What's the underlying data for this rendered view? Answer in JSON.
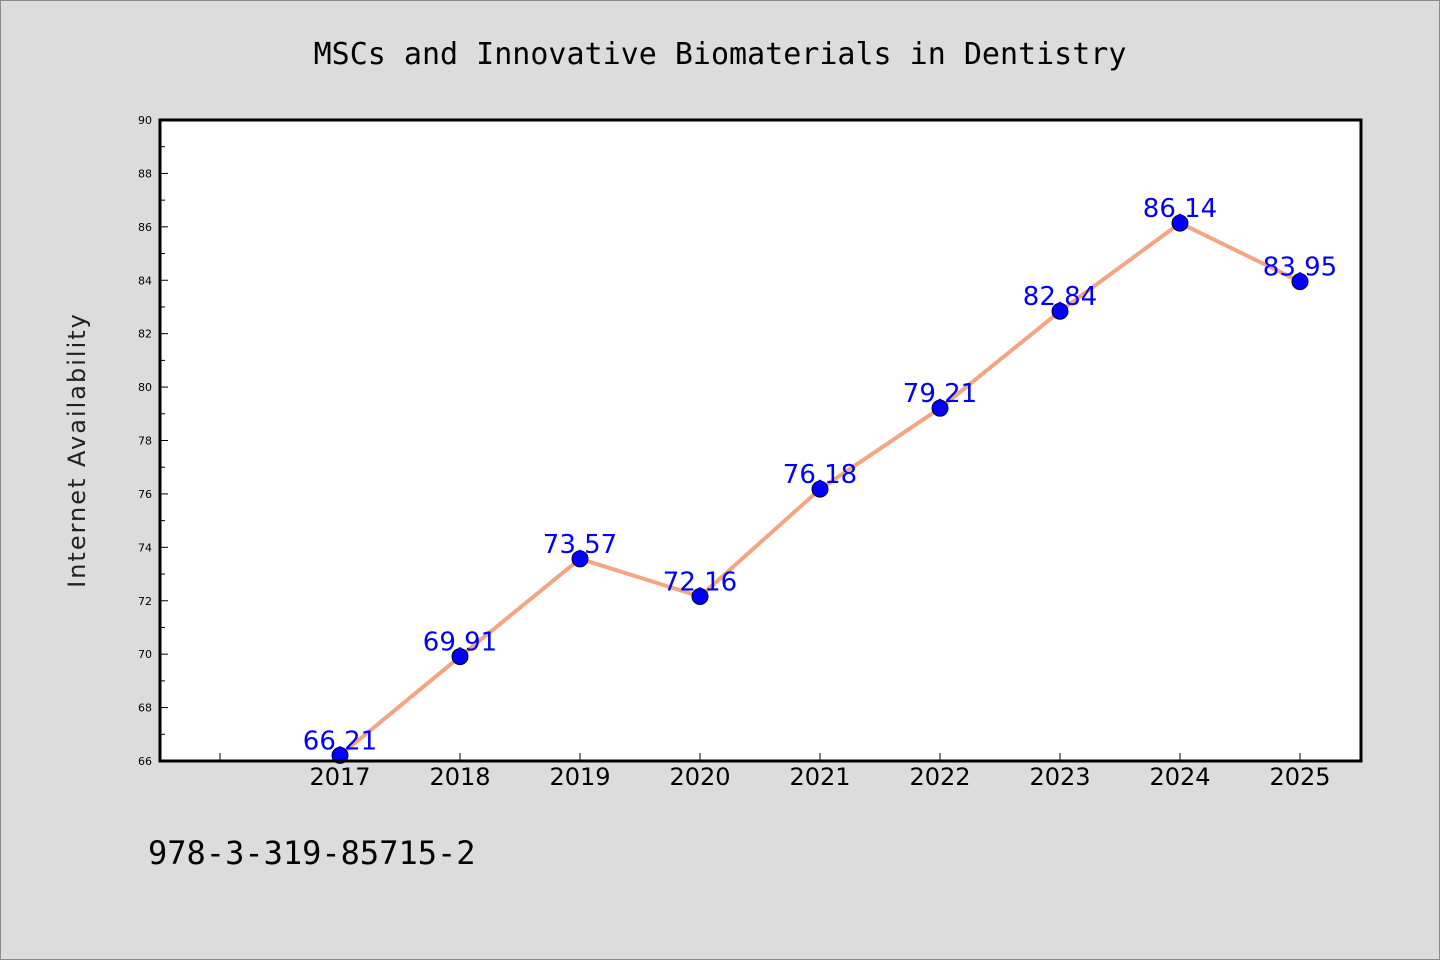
{
  "footnote": "978-3-319-85715-2",
  "colors": {
    "line": "#f4a582",
    "marker": "#0000ff",
    "label": "#0000ff",
    "background": "#dcdcdc",
    "plot_background": "#ffffff"
  },
  "chart_data": {
    "type": "line",
    "title": "MSCs and Innovative Biomaterials in Dentistry",
    "xlabel": "",
    "ylabel": "Internet Availability",
    "categories": [
      "2017",
      "2018",
      "2019",
      "2020",
      "2021",
      "2022",
      "2023",
      "2024",
      "2025"
    ],
    "values": [
      66.21,
      69.91,
      73.57,
      72.16,
      76.18,
      79.21,
      82.84,
      86.14,
      83.95
    ],
    "data_labels": [
      "66.21",
      "69.91",
      "73.57",
      "72.16",
      "76.18",
      "79.21",
      "82.84",
      "86.14",
      "83.95"
    ],
    "ylim": [
      66,
      90
    ],
    "yticks": [
      "66",
      "68",
      "70",
      "72",
      "74",
      "76",
      "78",
      "80",
      "82",
      "84",
      "86",
      "88",
      "90"
    ],
    "grid": false,
    "legend": "none"
  }
}
